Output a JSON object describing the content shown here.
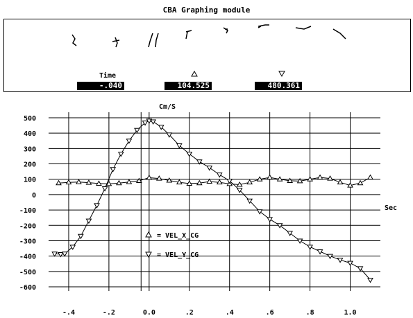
{
  "window": {
    "title": "CBA Graphing module"
  },
  "panel": {
    "time_label": "Time",
    "time_value": "-.040",
    "series1_marker": "triangle-up-icon",
    "series1_value": "104.525",
    "series2_marker": "triangle-down-icon",
    "series2_value": "480.361"
  },
  "chart_data": {
    "type": "scatter",
    "ylabel": "Cm/S",
    "xlabel": "Sec",
    "xlim": [
      -0.5,
      1.15
    ],
    "ylim": [
      -600,
      500
    ],
    "x_ticks": [
      {
        "value": -0.4,
        "label": "-.4"
      },
      {
        "value": -0.2,
        "label": "-.2"
      },
      {
        "value": 0.0,
        "label": "0.0"
      },
      {
        "value": 0.2,
        "label": ".2"
      },
      {
        "value": 0.4,
        "label": ".4"
      },
      {
        "value": 0.6,
        "label": ".6"
      },
      {
        "value": 0.8,
        "label": ".8"
      },
      {
        "value": 1.0,
        "label": "1.0"
      }
    ],
    "y_ticks": [
      {
        "value": 500,
        "label": "500"
      },
      {
        "value": 400,
        "label": "400"
      },
      {
        "value": 300,
        "label": "300"
      },
      {
        "value": 200,
        "label": "200"
      },
      {
        "value": 100,
        "label": "100"
      },
      {
        "value": 0,
        "label": "0"
      },
      {
        "value": -100,
        "label": "-100"
      },
      {
        "value": -200,
        "label": "-200"
      },
      {
        "value": -300,
        "label": "-300"
      },
      {
        "value": -400,
        "label": "-400"
      },
      {
        "value": -500,
        "label": "-500"
      },
      {
        "value": -600,
        "label": "-600"
      }
    ],
    "grid": true,
    "cursor_x": -0.04,
    "legend": {
      "placement": "lower-left"
    },
    "series": [
      {
        "name": "VEL_X_CG",
        "marker": "triangle-up",
        "points": [
          [
            -0.45,
            75
          ],
          [
            -0.4,
            80
          ],
          [
            -0.35,
            82
          ],
          [
            -0.3,
            78
          ],
          [
            -0.25,
            72
          ],
          [
            -0.2,
            70
          ],
          [
            -0.15,
            75
          ],
          [
            -0.1,
            82
          ],
          [
            -0.05,
            90
          ],
          [
            0.0,
            110
          ],
          [
            0.05,
            105
          ],
          [
            0.1,
            92
          ],
          [
            0.15,
            80
          ],
          [
            0.2,
            72
          ],
          [
            0.25,
            75
          ],
          [
            0.3,
            85
          ],
          [
            0.35,
            80
          ],
          [
            0.4,
            70
          ],
          [
            0.45,
            65
          ],
          [
            0.5,
            80
          ],
          [
            0.55,
            100
          ],
          [
            0.6,
            112
          ],
          [
            0.65,
            100
          ],
          [
            0.7,
            90
          ],
          [
            0.75,
            88
          ],
          [
            0.8,
            100
          ],
          [
            0.85,
            112
          ],
          [
            0.9,
            105
          ],
          [
            0.95,
            80
          ],
          [
            1.0,
            60
          ],
          [
            1.05,
            75
          ],
          [
            1.1,
            112
          ]
        ]
      },
      {
        "name": "VEL_Y_CG",
        "marker": "triangle-down",
        "points": [
          [
            -0.47,
            -385
          ],
          [
            -0.44,
            -388
          ],
          [
            -0.42,
            -385
          ],
          [
            -0.38,
            -340
          ],
          [
            -0.34,
            -270
          ],
          [
            -0.3,
            -170
          ],
          [
            -0.26,
            -70
          ],
          [
            -0.22,
            40
          ],
          [
            -0.18,
            165
          ],
          [
            -0.14,
            265
          ],
          [
            -0.1,
            350
          ],
          [
            -0.06,
            420
          ],
          [
            -0.02,
            468
          ],
          [
            0.0,
            480
          ],
          [
            0.02,
            475
          ],
          [
            0.06,
            440
          ],
          [
            0.1,
            390
          ],
          [
            0.15,
            320
          ],
          [
            0.2,
            265
          ],
          [
            0.25,
            215
          ],
          [
            0.3,
            175
          ],
          [
            0.35,
            130
          ],
          [
            0.4,
            90
          ],
          [
            0.45,
            30
          ],
          [
            0.5,
            -40
          ],
          [
            0.55,
            -110
          ],
          [
            0.6,
            -160
          ],
          [
            0.65,
            -200
          ],
          [
            0.7,
            -250
          ],
          [
            0.75,
            -300
          ],
          [
            0.8,
            -340
          ],
          [
            0.85,
            -370
          ],
          [
            0.9,
            -400
          ],
          [
            0.95,
            -425
          ],
          [
            1.0,
            -445
          ],
          [
            1.05,
            -480
          ],
          [
            1.1,
            -555
          ]
        ]
      }
    ]
  }
}
